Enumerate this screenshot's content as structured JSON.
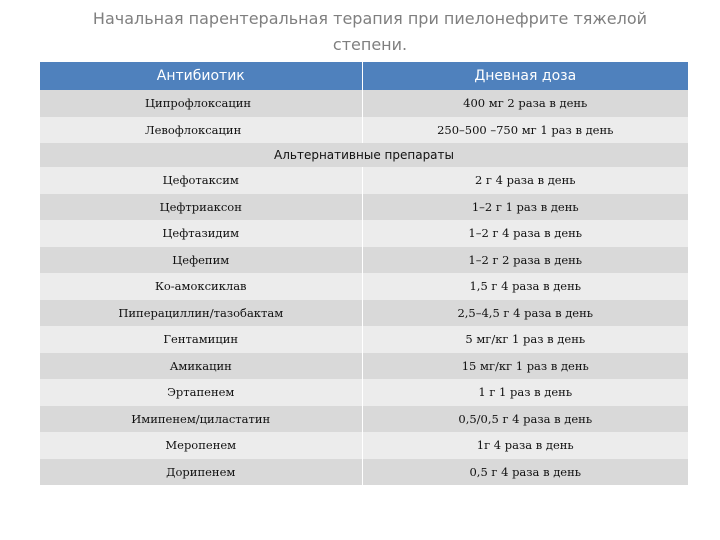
{
  "title": "Начальная парентеральная терапия при пиелонефрите тяжелой степени.",
  "table": {
    "headers": [
      "Антибиотик",
      "Дневная доза"
    ],
    "primary_rows": [
      [
        "Ципрофлоксацин",
        "400 мг 2 раза в день"
      ],
      [
        "Левофлоксацин",
        "250–500 –750 мг 1 раз в день"
      ]
    ],
    "section_label": "Альтернативные препараты",
    "alternative_rows": [
      [
        "Цефотаксим",
        "2 г 4 раза в день"
      ],
      [
        "Цефтриаксон",
        "1–2 г 1 раз в день"
      ],
      [
        "Цефтазидим",
        "1–2 г 4 раза в день"
      ],
      [
        "Цефепим",
        "1–2 г 2 раза в день"
      ],
      [
        "Ко-амоксиклав",
        "1,5 г 4 раза в день"
      ],
      [
        "Пиперациллин/тазобактам",
        "2,5–4,5 г 4 раза в день"
      ],
      [
        "Гентамицин",
        "5 мг/кг 1 раз в день"
      ],
      [
        "Амикацин",
        "15 мг/кг 1 раз в день"
      ],
      [
        "Эртапенем",
        "1 г 1 раз в день"
      ],
      [
        "Имипенем/циластатин",
        "0,5/0,5 г 4 раза в день"
      ],
      [
        "Меропенем",
        "1г 4 раза в день"
      ],
      [
        "Дорипенем",
        "0,5 г 4 раза в день"
      ]
    ]
  },
  "colors": {
    "header_bg": "#4f81bd",
    "row_dark": "#d9d9d9",
    "row_light": "#ececec",
    "title_text": "#7f7f7f"
  }
}
